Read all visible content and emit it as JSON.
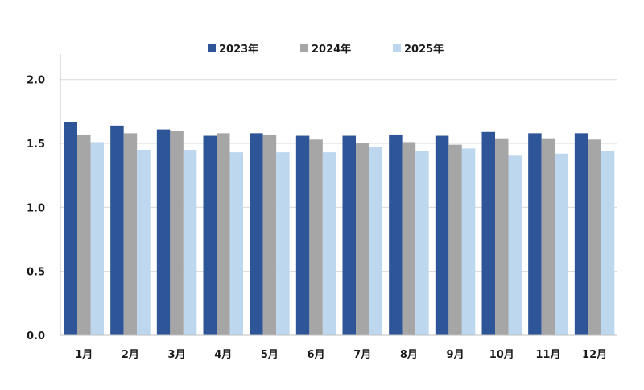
{
  "chart_data": {
    "type": "bar",
    "title": "",
    "xlabel": "",
    "ylabel": "",
    "ylim": [
      0,
      2.2
    ],
    "yticks": [
      "0.0",
      "0.5",
      "1.0",
      "1.5",
      "2.0"
    ],
    "ytick_values": [
      0,
      0.5,
      1.0,
      1.5,
      2.0
    ],
    "grid": true,
    "legend_position": "top-center",
    "categories": [
      "1月",
      "2月",
      "3月",
      "4月",
      "5月",
      "6月",
      "7月",
      "8月",
      "9月",
      "10月",
      "11月",
      "12月"
    ],
    "series": [
      {
        "name": "2023年",
        "color": "#2e5597",
        "values": [
          1.67,
          1.64,
          1.61,
          1.56,
          1.58,
          1.56,
          1.56,
          1.57,
          1.56,
          1.59,
          1.58,
          1.58
        ]
      },
      {
        "name": "2024年",
        "color": "#a6a6a6",
        "values": [
          1.57,
          1.58,
          1.6,
          1.58,
          1.57,
          1.53,
          1.5,
          1.51,
          1.49,
          1.54,
          1.54,
          1.53
        ]
      },
      {
        "name": "2025年",
        "color": "#bdd7ee",
        "values": [
          1.51,
          1.45,
          1.45,
          1.43,
          1.43,
          1.43,
          1.47,
          1.44,
          1.46,
          1.41,
          1.42,
          1.44
        ]
      }
    ]
  }
}
